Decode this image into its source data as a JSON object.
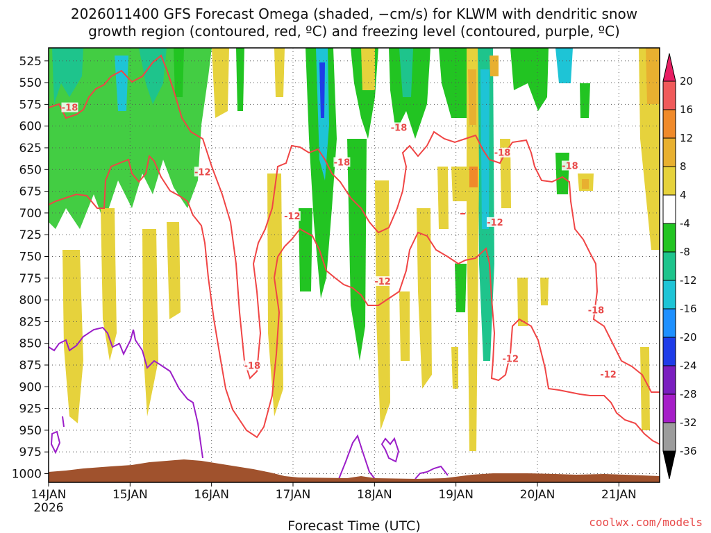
{
  "chart_data": {
    "type": "heatmap",
    "title_line1": "2026011400 GFS Forecast Omega (shaded, −cm/s) for KLWM with dendritic snow",
    "title_line2": "growth region (contoured, red, ºC) and freezing level (contoured, purple, ºC)",
    "xlabel": "Forecast Time (UTC)",
    "credit": "coolwx.com/models",
    "y_ticks": [
      "525",
      "550",
      "575",
      "600",
      "625",
      "650",
      "675",
      "700",
      "725",
      "750",
      "775",
      "800",
      "825",
      "850",
      "875",
      "900",
      "925",
      "950",
      "975",
      "1000"
    ],
    "y_values": [
      525,
      550,
      575,
      600,
      625,
      650,
      675,
      700,
      725,
      750,
      775,
      800,
      825,
      850,
      875,
      900,
      925,
      950,
      975,
      1000
    ],
    "ylim": [
      510,
      1010
    ],
    "x_ticks": [
      {
        "label": "14JAN",
        "day": 0
      },
      {
        "label": "15JAN",
        "day": 1
      },
      {
        "label": "16JAN",
        "day": 2
      },
      {
        "label": "17JAN",
        "day": 3
      },
      {
        "label": "18JAN",
        "day": 4
      },
      {
        "label": "19JAN",
        "day": 5
      },
      {
        "label": "20JAN",
        "day": 6
      },
      {
        "label": "21JAN",
        "day": 7
      }
    ],
    "x_year": "2026",
    "xlim_days": [
      0,
      7.5
    ],
    "colorbar": {
      "labels": [
        "20",
        "16",
        "12",
        "8",
        "4",
        "-4",
        "-8",
        "-12",
        "-16",
        "-20",
        "-24",
        "-28",
        "-32",
        "-36"
      ],
      "colors": [
        "#e81e63",
        "#f05a5a",
        "#f08a2a",
        "#e8b030",
        "#e6d23c",
        "#ffffff",
        "#22c422",
        "#1ec48c",
        "#1ec4d6",
        "#1e90ff",
        "#1e3ce8",
        "#7a1ebf",
        "#a61ec8",
        "#9c9c9c",
        "#000000"
      ],
      "arrow_top": "#e81e63",
      "arrow_bottom": "#000000"
    },
    "dgz_contours": {
      "color": "#f04545",
      "labels": [
        {
          "text": "-18",
          "day": 0.26,
          "p": 580
        },
        {
          "text": "-12",
          "day": 1.89,
          "p": 654
        },
        {
          "text": "-18",
          "day": 3.6,
          "p": 643
        },
        {
          "text": "-12",
          "day": 2.99,
          "p": 705
        },
        {
          "text": "-18",
          "day": 4.3,
          "p": 603
        },
        {
          "text": "-18",
          "day": 5.57,
          "p": 632
        },
        {
          "text": "-18",
          "day": 6.4,
          "p": 647
        },
        {
          "text": "-12",
          "day": 5.48,
          "p": 712
        },
        {
          "text": "-12",
          "day": 4.1,
          "p": 780
        },
        {
          "text": "-18",
          "day": 2.5,
          "p": 877
        },
        {
          "text": "-12",
          "day": 5.67,
          "p": 869
        },
        {
          "text": "-18",
          "day": 6.72,
          "p": 813
        },
        {
          "text": "-12",
          "day": 6.87,
          "p": 887
        }
      ]
    },
    "freezing_level_color": "#9b1ec8",
    "terrain_color": "#a0522d"
  }
}
